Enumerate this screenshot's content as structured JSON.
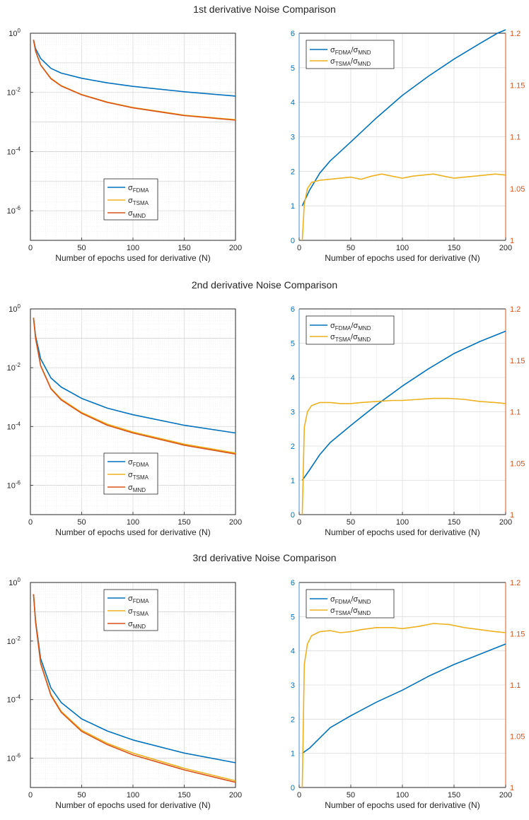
{
  "figure": {
    "row_titles": [
      "1st derivative Noise Comparison",
      "2nd derivative Noise Comparison",
      "3rd derivative Noise Comparison"
    ],
    "colors": {
      "fdma": "#0072BD",
      "tsma": "#EDB120",
      "mnd": "#D95319",
      "right_axis": "#D95319"
    }
  },
  "chart_data": [
    {
      "type": "line",
      "title": "1st derivative Noise Comparison",
      "xlabel": "Number of epochs used for derivative (N)",
      "ylabel": "",
      "yscale": "log",
      "xlim": [
        0,
        200
      ],
      "ylim": [
        1e-07,
        1
      ],
      "xticks": [
        0,
        50,
        100,
        150,
        200
      ],
      "yticks": [
        {
          "exp": 0,
          "label": "10",
          "sup": "0"
        },
        {
          "exp": -2,
          "label": "10",
          "sup": "-2"
        },
        {
          "exp": -4,
          "label": "10",
          "sup": "-4"
        },
        {
          "exp": -6,
          "label": "10",
          "sup": "-6"
        }
      ],
      "grid": true,
      "legend": {
        "position": "bottom-center",
        "entries": [
          {
            "base": "σ",
            "sub": "FDMA"
          },
          {
            "base": "σ",
            "sub": "TSMA"
          },
          {
            "base": "σ",
            "sub": "MND"
          }
        ]
      },
      "x": [
        3,
        5,
        10,
        20,
        30,
        50,
        75,
        100,
        150,
        200
      ],
      "series": [
        {
          "key": "fdma",
          "values": [
            0.6,
            0.3,
            0.14,
            0.065,
            0.045,
            0.03,
            0.021,
            0.016,
            0.0105,
            0.0075
          ]
        },
        {
          "key": "tsma",
          "values": [
            0.6,
            0.25,
            0.085,
            0.03,
            0.017,
            0.0085,
            0.0047,
            0.0031,
            0.0017,
            0.0012
          ]
        },
        {
          "key": "mnd",
          "values": [
            0.6,
            0.25,
            0.084,
            0.029,
            0.0165,
            0.0083,
            0.0046,
            0.003,
            0.00165,
            0.00115
          ]
        }
      ]
    },
    {
      "type": "line",
      "xlabel": "Number of epochs used for derivative (N)",
      "ylabel": "",
      "xlim": [
        0,
        200
      ],
      "ylim": [
        0,
        6
      ],
      "y2lim": [
        1,
        1.2
      ],
      "xticks": [
        0,
        50,
        100,
        150,
        200
      ],
      "yticks": [
        0,
        1,
        2,
        3,
        4,
        5,
        6
      ],
      "y2ticks": [
        "1",
        "1.05",
        "1.1",
        "1.15",
        "1.2"
      ],
      "grid": true,
      "legend": {
        "position": "top-left",
        "entries": [
          {
            "a": "σ",
            "asub": "FDMA",
            "b": "/σ",
            "bsub": "MND"
          },
          {
            "a": "σ",
            "asub": "TSMA",
            "b": "/σ",
            "bsub": "MND"
          }
        ]
      },
      "series": [
        {
          "key": "fdma",
          "axis": "left",
          "x": [
            3,
            10,
            20,
            30,
            50,
            75,
            100,
            125,
            150,
            175,
            192,
            200
          ],
          "values": [
            1.0,
            1.45,
            1.95,
            2.3,
            2.85,
            3.55,
            4.2,
            4.75,
            5.25,
            5.7,
            6.0,
            6.1
          ]
        },
        {
          "key": "tsma",
          "axis": "right",
          "x": [
            3,
            5,
            8,
            12,
            20,
            30,
            40,
            50,
            60,
            70,
            80,
            90,
            100,
            110,
            120,
            130,
            140,
            150,
            160,
            170,
            180,
            190,
            200
          ],
          "values": [
            1.0,
            1.035,
            1.05,
            1.056,
            1.058,
            1.059,
            1.06,
            1.061,
            1.059,
            1.062,
            1.064,
            1.062,
            1.06,
            1.062,
            1.063,
            1.064,
            1.062,
            1.06,
            1.061,
            1.062,
            1.063,
            1.064,
            1.063
          ]
        }
      ]
    },
    {
      "type": "line",
      "title": "2nd derivative Noise Comparison",
      "xlabel": "Number of epochs used for derivative (N)",
      "ylabel": "",
      "yscale": "log",
      "xlim": [
        0,
        200
      ],
      "ylim": [
        1e-07,
        1
      ],
      "xticks": [
        0,
        50,
        100,
        150,
        200
      ],
      "yticks": [
        {
          "exp": 0,
          "label": "10",
          "sup": "0"
        },
        {
          "exp": -2,
          "label": "10",
          "sup": "-2"
        },
        {
          "exp": -4,
          "label": "10",
          "sup": "-4"
        },
        {
          "exp": -6,
          "label": "10",
          "sup": "-6"
        }
      ],
      "grid": true,
      "legend": {
        "position": "bottom-center",
        "entries": [
          {
            "base": "σ",
            "sub": "FDMA"
          },
          {
            "base": "σ",
            "sub": "TSMA"
          },
          {
            "base": "σ",
            "sub": "MND"
          }
        ]
      },
      "x": [
        3,
        5,
        10,
        20,
        30,
        50,
        75,
        100,
        150,
        200
      ],
      "series": [
        {
          "key": "fdma",
          "values": [
            0.5,
            0.12,
            0.02,
            0.0045,
            0.0022,
            0.0009,
            0.00042,
            0.00025,
            0.00011,
            6e-05
          ]
        },
        {
          "key": "tsma",
          "values": [
            0.5,
            0.1,
            0.012,
            0.002,
            0.00085,
            0.0003,
            0.00012,
            6.5e-05,
            2.5e-05,
            1.25e-05
          ]
        },
        {
          "key": "mnd",
          "values": [
            0.5,
            0.1,
            0.0115,
            0.0019,
            0.0008,
            0.00028,
            0.00011,
            6e-05,
            2.3e-05,
            1.15e-05
          ]
        }
      ]
    },
    {
      "type": "line",
      "xlabel": "Number of epochs used for derivative (N)",
      "ylabel": "",
      "xlim": [
        0,
        200
      ],
      "ylim": [
        0,
        6
      ],
      "y2lim": [
        1,
        1.2
      ],
      "xticks": [
        0,
        50,
        100,
        150,
        200
      ],
      "yticks": [
        0,
        1,
        2,
        3,
        4,
        5,
        6
      ],
      "y2ticks": [
        "1",
        "1.05",
        "1.1",
        "1.15",
        "1.2"
      ],
      "grid": true,
      "legend": {
        "position": "top-left",
        "entries": [
          {
            "a": "σ",
            "asub": "FDMA",
            "b": "/σ",
            "bsub": "MND"
          },
          {
            "a": "σ",
            "asub": "TSMA",
            "b": "/σ",
            "bsub": "MND"
          }
        ]
      },
      "series": [
        {
          "key": "fdma",
          "axis": "left",
          "x": [
            3,
            10,
            20,
            30,
            50,
            75,
            100,
            125,
            150,
            175,
            200
          ],
          "values": [
            1.0,
            1.3,
            1.75,
            2.1,
            2.6,
            3.2,
            3.75,
            4.25,
            4.7,
            5.05,
            5.35
          ]
        },
        {
          "key": "tsma",
          "axis": "right",
          "x": [
            3,
            5,
            8,
            12,
            20,
            30,
            40,
            50,
            60,
            75,
            90,
            100,
            115,
            130,
            145,
            160,
            175,
            190,
            200
          ],
          "values": [
            1.0,
            1.085,
            1.1,
            1.106,
            1.109,
            1.109,
            1.108,
            1.108,
            1.109,
            1.11,
            1.111,
            1.111,
            1.112,
            1.113,
            1.113,
            1.112,
            1.11,
            1.109,
            1.108
          ]
        }
      ]
    },
    {
      "type": "line",
      "title": "3rd derivative Noise Comparison",
      "xlabel": "Number of epochs used for derivative (N)",
      "ylabel": "",
      "yscale": "log",
      "xlim": [
        0,
        200
      ],
      "ylim": [
        1e-07,
        1
      ],
      "xticks": [
        0,
        50,
        100,
        150,
        200
      ],
      "yticks": [
        {
          "exp": 0,
          "label": "10",
          "sup": "0"
        },
        {
          "exp": -2,
          "label": "10",
          "sup": "-2"
        },
        {
          "exp": -4,
          "label": "10",
          "sup": "-4"
        },
        {
          "exp": -6,
          "label": "10",
          "sup": "-6"
        }
      ],
      "grid": true,
      "legend": {
        "position": "top-center",
        "entries": [
          {
            "base": "σ",
            "sub": "FDMA"
          },
          {
            "base": "σ",
            "sub": "TSMA"
          },
          {
            "base": "σ",
            "sub": "MND"
          }
        ]
      },
      "x": [
        3,
        5,
        10,
        20,
        30,
        50,
        75,
        100,
        150,
        200
      ],
      "series": [
        {
          "key": "fdma",
          "values": [
            0.4,
            0.05,
            0.0025,
            0.00025,
            8e-05,
            2.2e-05,
            8.5e-06,
            4.2e-06,
            1.5e-06,
            7e-07
          ]
        },
        {
          "key": "tsma",
          "values": [
            0.4,
            0.045,
            0.0018,
            0.00015,
            4e-05,
            9e-06,
            3.2e-06,
            1.5e-06,
            4.5e-07,
            1.7e-07
          ]
        },
        {
          "key": "mnd",
          "values": [
            0.4,
            0.044,
            0.0017,
            0.00014,
            3.7e-05,
            8.2e-06,
            2.9e-06,
            1.3e-06,
            4e-07,
            1.5e-07
          ]
        }
      ]
    },
    {
      "type": "line",
      "xlabel": "Number of epochs used for derivative (N)",
      "ylabel": "",
      "xlim": [
        0,
        200
      ],
      "ylim": [
        0,
        6
      ],
      "y2lim": [
        1,
        1.2
      ],
      "xticks": [
        0,
        50,
        100,
        150,
        200
      ],
      "yticks": [
        0,
        1,
        2,
        3,
        4,
        5,
        6
      ],
      "y2ticks": [
        "1",
        "1.05",
        "1.1",
        "1.15",
        "1.2"
      ],
      "grid": true,
      "legend": {
        "position": "top-left",
        "entries": [
          {
            "a": "σ",
            "asub": "FDMA",
            "b": "/σ",
            "bsub": "MND"
          },
          {
            "a": "σ",
            "asub": "TSMA",
            "b": "/σ",
            "bsub": "MND"
          }
        ]
      },
      "series": [
        {
          "key": "fdma",
          "axis": "left",
          "x": [
            3,
            10,
            20,
            30,
            50,
            75,
            100,
            125,
            150,
            175,
            200
          ],
          "values": [
            1.0,
            1.15,
            1.45,
            1.75,
            2.1,
            2.5,
            2.85,
            3.25,
            3.6,
            3.9,
            4.2
          ]
        },
        {
          "key": "tsma",
          "axis": "right",
          "x": [
            3,
            5,
            8,
            12,
            20,
            30,
            40,
            50,
            60,
            75,
            90,
            100,
            115,
            130,
            145,
            160,
            175,
            190,
            200
          ],
          "values": [
            1.0,
            1.12,
            1.14,
            1.148,
            1.152,
            1.153,
            1.151,
            1.152,
            1.154,
            1.156,
            1.156,
            1.155,
            1.157,
            1.16,
            1.159,
            1.156,
            1.154,
            1.152,
            1.151
          ]
        }
      ]
    }
  ]
}
